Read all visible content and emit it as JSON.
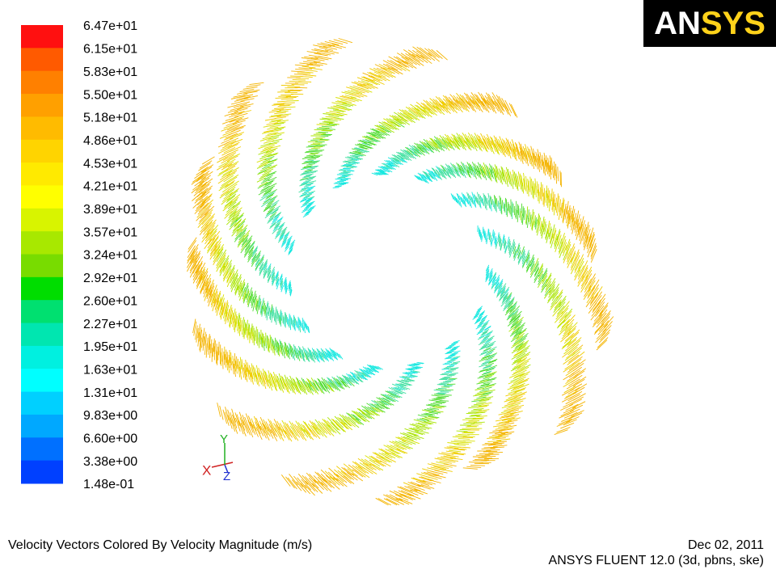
{
  "logo": {
    "left": "AN",
    "right": "SYS"
  },
  "colorbar": {
    "labels": [
      "6.47e+01",
      "6.15e+01",
      "5.83e+01",
      "5.50e+01",
      "5.18e+01",
      "4.86e+01",
      "4.53e+01",
      "4.21e+01",
      "3.89e+01",
      "3.57e+01",
      "3.24e+01",
      "2.92e+01",
      "2.60e+01",
      "2.27e+01",
      "1.95e+01",
      "1.63e+01",
      "1.31e+01",
      "9.83e+00",
      "6.60e+00",
      "3.38e+00",
      "1.48e-01"
    ],
    "colors": [
      "#ff1010",
      "#ff5a00",
      "#ff8000",
      "#ffa000",
      "#ffbb00",
      "#ffd400",
      "#ffea00",
      "#ffff00",
      "#d8f400",
      "#a8e800",
      "#78dc00",
      "#00dd00",
      "#00e070",
      "#00e6b0",
      "#00f0e0",
      "#00ffff",
      "#00d0ff",
      "#00a8ff",
      "#0070ff",
      "#0040ff"
    ]
  },
  "triad": {
    "x": "X",
    "y": "Y",
    "z": "Z"
  },
  "footer": {
    "title": "Velocity Vectors Colored By Velocity Magnitude (m/s)",
    "date": "Dec 02, 2011",
    "version": "ANSYS FLUENT 12.0 (3d, pbns, ske)"
  }
}
